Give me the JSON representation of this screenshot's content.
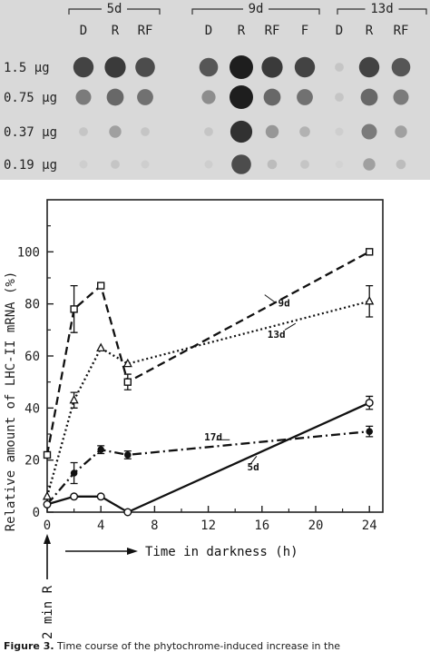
{
  "blot": {
    "groups": [
      {
        "label": "5d",
        "lanes": [
          "D",
          "R",
          "RF"
        ]
      },
      {
        "label": "9d",
        "lanes": [
          "D",
          "R",
          "RF",
          "F"
        ]
      },
      {
        "label": "13d",
        "lanes": [
          "D",
          "R",
          "RF"
        ]
      }
    ],
    "amounts": [
      "1.5 μg",
      "0.75 μg",
      "0.37 μg",
      "0.19 μg"
    ],
    "intensity": [
      [
        0.8,
        0.85,
        0.75,
        0.7,
        1.0,
        0.85,
        0.8,
        0.1,
        0.8,
        0.7
      ],
      [
        0.5,
        0.6,
        0.55,
        0.4,
        1.0,
        0.6,
        0.55,
        0.1,
        0.6,
        0.5
      ],
      [
        0.1,
        0.3,
        0.1,
        0.1,
        0.9,
        0.35,
        0.2,
        0.05,
        0.5,
        0.3
      ],
      [
        0.05,
        0.1,
        0.05,
        0.05,
        0.75,
        0.15,
        0.1,
        0.02,
        0.3,
        0.15
      ]
    ]
  },
  "chart_data": {
    "type": "line",
    "xlabel": "Time in darkness (h)",
    "ylabel": "Relative amount of LHC-II mRNA (%)",
    "xlim": [
      0,
      25
    ],
    "ylim": [
      0,
      120
    ],
    "xticks": [
      0,
      4,
      8,
      12,
      16,
      20,
      24
    ],
    "yticks": [
      0,
      20,
      40,
      60,
      80,
      100
    ],
    "annotation": "2 min R",
    "series": [
      {
        "name": "9d",
        "marker": "square-open",
        "dash": "9,5",
        "x": [
          0,
          2,
          4,
          6,
          24
        ],
        "y": [
          22,
          78,
          87,
          50,
          100
        ],
        "err": [
          0,
          9,
          0,
          3,
          0
        ]
      },
      {
        "name": "13d",
        "marker": "triangle-open",
        "dash": "2,3",
        "x": [
          0,
          2,
          4,
          6,
          24
        ],
        "y": [
          6,
          43,
          63,
          57,
          81
        ],
        "err": [
          0,
          3,
          0,
          0,
          6
        ]
      },
      {
        "name": "17d",
        "marker": "circle-filled",
        "dash": "10,4,2,4",
        "x": [
          0,
          2,
          4,
          6,
          24
        ],
        "y": [
          3,
          15,
          24,
          22,
          31
        ],
        "err": [
          0,
          4,
          1.5,
          1.5,
          2
        ]
      },
      {
        "name": "5d",
        "marker": "circle-open",
        "dash": "",
        "x": [
          0,
          2,
          4,
          6,
          24
        ],
        "y": [
          3,
          6,
          6,
          0,
          42
        ],
        "err": [
          0,
          0,
          0,
          0,
          2.5
        ]
      }
    ],
    "labels": [
      {
        "text": "9d",
        "x": 17.2,
        "y": 79
      },
      {
        "text": "13d",
        "x": 16.4,
        "y": 67
      },
      {
        "text": "17d",
        "x": 11.7,
        "y": 27.5
      },
      {
        "text": "5d",
        "x": 14.9,
        "y": 16
      }
    ]
  },
  "caption": {
    "lead": "Figure 3.",
    "text": " Time course of the phytochrome-induced increase in the"
  }
}
